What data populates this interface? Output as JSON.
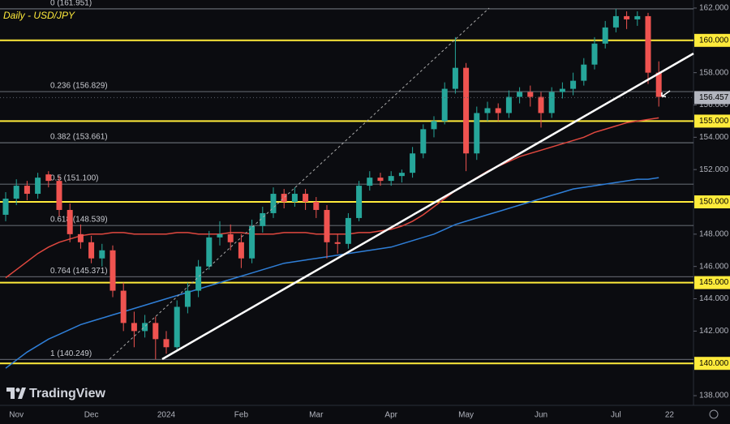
{
  "chart_data": {
    "type": "candlestick",
    "title": "Daily - USD/JPY",
    "watermark": "TradingView",
    "categories": [
      null,
      "Nov",
      null,
      null,
      null,
      null,
      null,
      null,
      "Dec",
      null,
      null,
      null,
      null,
      null,
      null,
      "2024",
      null,
      null,
      null,
      null,
      null,
      null,
      "Feb",
      null,
      null,
      null,
      null,
      null,
      null,
      "Mar",
      null,
      null,
      null,
      null,
      null,
      null,
      "Apr",
      null,
      null,
      null,
      null,
      null,
      null,
      "May",
      null,
      null,
      null,
      null,
      null,
      null,
      "Jun",
      null,
      null,
      null,
      null,
      null,
      null,
      "Jul",
      null,
      null,
      null,
      null,
      "22"
    ],
    "open": [
      149.2,
      150.2,
      151.0,
      150.5,
      151.7,
      151.3,
      149.5,
      148.0,
      147.5,
      146.5,
      147.0,
      144.5,
      142.5,
      142.0,
      142.5,
      141.5,
      141.0,
      143.5,
      144.5,
      146.0,
      147.8,
      148.0,
      147.5,
      146.5,
      148.5,
      149.3,
      150.5,
      150.0,
      150.5,
      150.0,
      149.5,
      147.5,
      147.4,
      149.0,
      151.0,
      151.5,
      151.3,
      151.6,
      151.8,
      153.0,
      154.5,
      155.0,
      157.0,
      158.3,
      153.0,
      155.5,
      155.8,
      155.5,
      156.5,
      156.8,
      156.5,
      155.5,
      156.8,
      157.0,
      157.5,
      158.5,
      159.8,
      160.8,
      161.5,
      161.3,
      161.5,
      158.0,
      null
    ],
    "high": [
      150.6,
      151.4,
      151.3,
      151.8,
      151.9,
      151.6,
      149.9,
      148.6,
      147.9,
      147.4,
      147.3,
      145.0,
      143.2,
      143.0,
      142.9,
      142.0,
      143.9,
      145.0,
      146.4,
      148.2,
      148.8,
      148.6,
      148.0,
      148.9,
      149.7,
      150.9,
      150.8,
      150.9,
      150.8,
      150.3,
      149.8,
      148.0,
      149.3,
      151.3,
      151.9,
      151.8,
      151.9,
      152.0,
      153.4,
      154.8,
      155.3,
      157.4,
      160.2,
      158.6,
      155.9,
      156.2,
      156.1,
      156.9,
      157.1,
      157.2,
      156.8,
      157.1,
      157.4,
      158.0,
      158.9,
      160.2,
      161.2,
      161.95,
      161.8,
      161.8,
      161.7,
      158.7,
      null
    ],
    "low": [
      148.8,
      149.8,
      150.1,
      150.2,
      150.9,
      149.1,
      147.5,
      147.1,
      146.2,
      146.0,
      144.1,
      142.0,
      141.0,
      141.6,
      140.25,
      140.6,
      140.8,
      143.1,
      144.1,
      145.8,
      147.3,
      147.0,
      145.9,
      146.2,
      148.1,
      149.0,
      149.6,
      149.7,
      149.5,
      149.0,
      146.5,
      146.8,
      147.1,
      148.8,
      150.7,
      151.0,
      151.0,
      151.2,
      151.5,
      152.7,
      154.0,
      154.8,
      156.7,
      151.9,
      152.6,
      155.0,
      155.0,
      155.2,
      156.1,
      155.9,
      154.6,
      155.2,
      156.4,
      156.6,
      157.2,
      158.2,
      159.5,
      160.5,
      160.7,
      160.9,
      157.3,
      155.9,
      null
    ],
    "close": [
      150.2,
      151.0,
      150.5,
      151.5,
      151.3,
      149.5,
      148.0,
      147.5,
      146.5,
      147.0,
      144.5,
      142.5,
      142.0,
      142.5,
      141.5,
      141.0,
      143.5,
      144.5,
      146.0,
      147.8,
      148.0,
      147.5,
      146.5,
      148.5,
      149.3,
      150.5,
      150.0,
      150.5,
      150.0,
      149.5,
      147.5,
      147.4,
      149.0,
      151.0,
      151.5,
      151.3,
      151.6,
      151.8,
      153.0,
      154.5,
      155.0,
      157.0,
      158.3,
      153.0,
      155.5,
      155.8,
      155.5,
      156.5,
      156.8,
      156.5,
      155.5,
      156.8,
      157.0,
      157.5,
      158.5,
      159.8,
      160.8,
      161.5,
      161.3,
      161.5,
      158.0,
      156.5,
      null
    ],
    "up_color": "#26a69a",
    "down_color": "#ef5350",
    "series": [
      {
        "color": "#e0483f",
        "values": [
          145.3,
          145.8,
          146.3,
          146.8,
          147.2,
          147.5,
          147.7,
          147.9,
          148.0,
          148.0,
          148.1,
          148.1,
          148.0,
          148.0,
          148.0,
          148.0,
          148.1,
          148.1,
          148.0,
          148.0,
          148.0,
          148.1,
          148.1,
          148.0,
          148.0,
          148.0,
          148.1,
          148.1,
          148.1,
          148.0,
          148.0,
          148.0,
          148.0,
          148.1,
          148.1,
          148.2,
          148.3,
          148.5,
          148.8,
          149.2,
          149.7,
          150.2,
          150.7,
          151.1,
          151.5,
          151.9,
          152.2,
          152.5,
          152.8,
          153.0,
          153.2,
          153.4,
          153.6,
          153.8,
          154.0,
          154.3,
          154.5,
          154.7,
          154.9,
          155.0,
          155.1,
          155.2,
          null
        ]
      },
      {
        "color": "#2f7fd8",
        "values": [
          139.7,
          140.2,
          140.7,
          141.1,
          141.5,
          141.8,
          142.1,
          142.4,
          142.6,
          142.8,
          143.0,
          143.2,
          143.4,
          143.6,
          143.8,
          144.0,
          144.2,
          144.4,
          144.6,
          144.8,
          145.0,
          145.2,
          145.4,
          145.6,
          145.8,
          146.0,
          146.2,
          146.3,
          146.4,
          146.5,
          146.6,
          146.7,
          146.8,
          146.9,
          147.0,
          147.1,
          147.2,
          147.4,
          147.6,
          147.8,
          148.0,
          148.3,
          148.6,
          148.8,
          149.0,
          149.2,
          149.4,
          149.6,
          149.8,
          150.0,
          150.2,
          150.4,
          150.6,
          150.8,
          150.9,
          151.0,
          151.1,
          151.2,
          151.3,
          151.4,
          151.4,
          151.5,
          null
        ]
      }
    ],
    "ylim": [
      137.4,
      162.5
    ],
    "yticks": [
      {
        "value": 138,
        "label": "138.000"
      },
      {
        "value": 142,
        "label": "142.000"
      },
      {
        "value": 144,
        "label": "144.000"
      },
      {
        "value": 146,
        "label": "146.000"
      },
      {
        "value": 148,
        "label": "148.000"
      },
      {
        "value": 152,
        "label": "152.000"
      },
      {
        "value": 154,
        "label": "154.000"
      },
      {
        "value": 156,
        "label": "156.000"
      },
      {
        "value": 158,
        "label": "158.000"
      },
      {
        "value": 162,
        "label": "162.000"
      }
    ],
    "grid": false,
    "levels_color": "#ffeb3b",
    "levels": [
      {
        "value": 160,
        "label": "160.000"
      },
      {
        "value": 155,
        "label": "155.000"
      },
      {
        "value": 150,
        "label": "150.000"
      },
      {
        "value": 145,
        "label": "145.000"
      },
      {
        "value": 140,
        "label": "140.000"
      }
    ],
    "fib_levels": [
      {
        "value": 161.951,
        "label": "0 (161.951)"
      },
      {
        "value": 156.829,
        "label": "0.236 (156.829)"
      },
      {
        "value": 153.661,
        "label": "0.382 (153.661)"
      },
      {
        "value": 151.1,
        "label": "0.5 (151.100)"
      },
      {
        "value": 148.539,
        "label": "0.618 (148.539)"
      },
      {
        "value": 145.371,
        "label": "0.764 (145.371)"
      },
      {
        "value": 140.249,
        "label": "1 (140.249)"
      }
    ],
    "last_price": {
      "value": 156.457,
      "label": "156.457"
    }
  }
}
